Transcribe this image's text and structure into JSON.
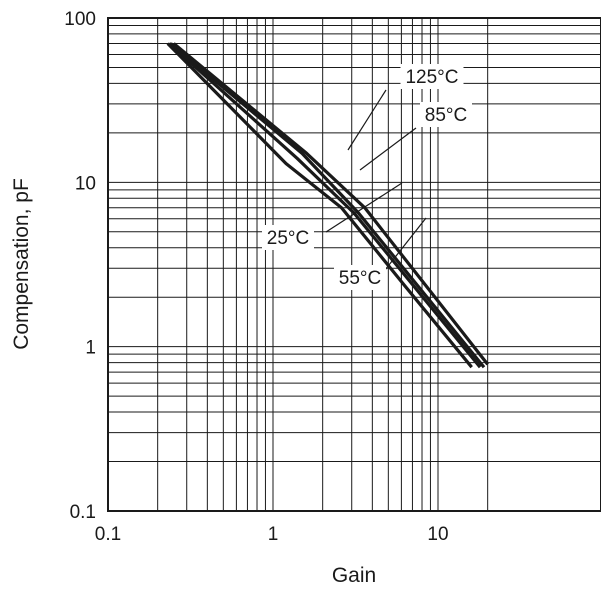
{
  "chart_data": {
    "type": "line",
    "title": "",
    "xlabel": "Gain",
    "ylabel": "Compensation, pF",
    "xscale": "log",
    "yscale": "log",
    "xlim": [
      0.1,
      20
    ],
    "ylim": [
      0.1,
      100
    ],
    "grid": true,
    "line_color": "#1a1a1a",
    "x_ticks": [
      {
        "value": 0.1,
        "label": "0.1"
      },
      {
        "value": 1,
        "label": "1"
      },
      {
        "value": 10,
        "label": "10"
      }
    ],
    "y_ticks": [
      {
        "value": 0.1,
        "label": "0.1"
      },
      {
        "value": 1,
        "label": "1"
      },
      {
        "value": 10,
        "label": "10"
      },
      {
        "value": 100,
        "label": "100"
      }
    ],
    "series": [
      {
        "name": "125°C",
        "x": [
          0.25,
          1.6,
          3.6,
          20
        ],
        "y": [
          70,
          15,
          7,
          0.78
        ]
      },
      {
        "name": "85°C",
        "x": [
          0.24,
          1.5,
          3.3,
          19
        ],
        "y": [
          70,
          15,
          6.5,
          0.75
        ]
      },
      {
        "name": "25°C",
        "x": [
          0.235,
          1.4,
          3.1,
          18
        ],
        "y": [
          70,
          14,
          6.5,
          0.75
        ]
      },
      {
        "name": "55°C",
        "x": [
          0.23,
          1.2,
          2.6,
          6.4,
          16
        ],
        "y": [
          70,
          13,
          7,
          2.3,
          0.75
        ]
      }
    ]
  }
}
